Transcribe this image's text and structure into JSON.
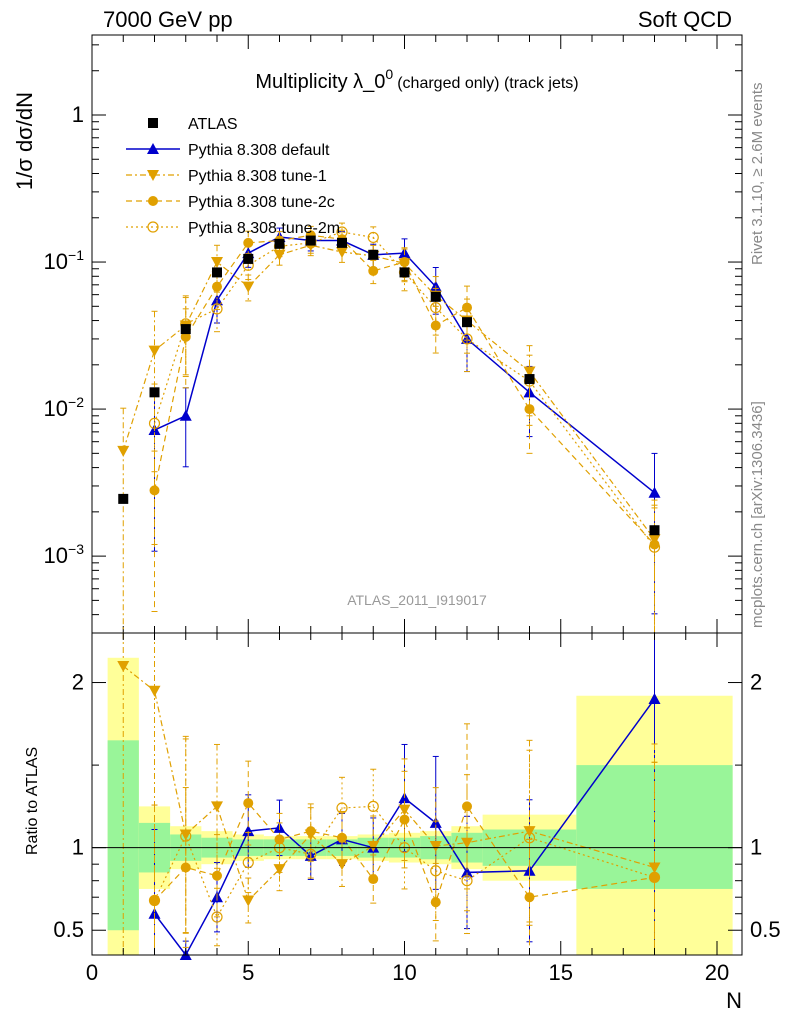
{
  "header": {
    "left": "7000 GeV pp",
    "right": "Soft QCD"
  },
  "side_labels": {
    "rivet": "Rivet 3.1.10, ≥ 2.6M events",
    "mcplots": "mcplots.cern.ch [arXiv:1306.3436]"
  },
  "analysis_id": "ATLAS_2011_I919017",
  "colors": {
    "atlas": "#000000",
    "default": "#0000cc",
    "tune": "#e0a000",
    "band_inner": "#99f599",
    "band_outer": "#ffff99"
  },
  "chart_data": [
    {
      "type": "line",
      "title_main": "Multiplicity λ_0",
      "title_sup": "0",
      "title_suffix": "(charged only) (track jets)",
      "ylabel": "1/σ dσ/dN",
      "yscale": "log",
      "ylim": [
        0.0003,
        3.5
      ],
      "xlim": [
        0,
        20.8
      ],
      "ytick_labels": [
        "1",
        "10",
        "10",
        "10"
      ],
      "ytick_exps": [
        "",
        "−1",
        "−2",
        "−3"
      ],
      "legend_placement": "top-left",
      "legend": [
        "ATLAS",
        "Pythia 8.308 default",
        "Pythia 8.308 tune-1",
        "Pythia 8.308 tune-2c",
        "Pythia 8.308 tune-2m"
      ],
      "x": [
        1,
        2,
        3,
        4,
        5,
        6,
        7,
        8,
        9,
        10,
        11,
        12,
        14,
        18
      ],
      "series": [
        {
          "name": "ATLAS",
          "values": [
            0.00245,
            0.013,
            0.035,
            0.085,
            0.105,
            0.133,
            0.14,
            0.135,
            0.112,
            0.085,
            0.058,
            0.039,
            0.016,
            0.0015
          ]
        },
        {
          "name": "Pythia 8.308 default",
          "values": [
            null,
            0.0072,
            0.009,
            0.055,
            0.115,
            0.148,
            0.14,
            0.14,
            0.112,
            0.115,
            0.068,
            0.03,
            0.013,
            0.0027
          ]
        },
        {
          "name": "Pythia 8.308 tune-1",
          "values": [
            0.0052,
            0.025,
            0.037,
            0.1,
            0.068,
            0.112,
            0.13,
            0.117,
            0.11,
            0.098,
            0.059,
            0.04,
            0.018,
            0.0013
          ]
        },
        {
          "name": "Pythia 8.308 tune-2c",
          "values": [
            null,
            0.0028,
            0.031,
            0.068,
            0.135,
            0.14,
            0.152,
            0.143,
            0.087,
            0.1,
            0.037,
            0.049,
            0.01,
            0.0012
          ]
        },
        {
          "name": "Pythia 8.308 tune-2m",
          "values": [
            null,
            0.008,
            0.038,
            0.048,
            0.095,
            0.128,
            0.135,
            0.16,
            0.147,
            0.085,
            0.049,
            0.03,
            0.0155,
            0.00115
          ]
        }
      ]
    },
    {
      "type": "line",
      "ylabel": "Ratio to ATLAS",
      "xlabel": "N",
      "ylim": [
        0.35,
        2.3
      ],
      "xlim": [
        0,
        20.8
      ],
      "reference": 1,
      "xtick_labels": [
        "0",
        "5",
        "10",
        "15",
        "20"
      ],
      "ytick_labels": [
        "0.5",
        "1",
        "2"
      ],
      "ytick_values": [
        0.5,
        1,
        2
      ],
      "bands": [
        {
          "xlo": 0.5,
          "xhi": 1.5,
          "inner": [
            0.5,
            1.65
          ],
          "outer": [
            0.35,
            2.15
          ]
        },
        {
          "xlo": 1.5,
          "xhi": 2.5,
          "inner": [
            0.85,
            1.15
          ],
          "outer": [
            0.75,
            1.25
          ]
        },
        {
          "xlo": 2.5,
          "xhi": 3.5,
          "inner": [
            0.92,
            1.08
          ],
          "outer": [
            0.87,
            1.13
          ]
        },
        {
          "xlo": 3.5,
          "xhi": 4.5,
          "inner": [
            0.94,
            1.06
          ],
          "outer": [
            0.9,
            1.1
          ]
        },
        {
          "xlo": 4.5,
          "xhi": 5.5,
          "inner": [
            0.95,
            1.05
          ],
          "outer": [
            0.92,
            1.08
          ]
        },
        {
          "xlo": 5.5,
          "xhi": 6.5,
          "inner": [
            0.95,
            1.05
          ],
          "outer": [
            0.93,
            1.07
          ]
        },
        {
          "xlo": 6.5,
          "xhi": 7.5,
          "inner": [
            0.95,
            1.05
          ],
          "outer": [
            0.93,
            1.07
          ]
        },
        {
          "xlo": 7.5,
          "xhi": 8.5,
          "inner": [
            0.95,
            1.05
          ],
          "outer": [
            0.93,
            1.07
          ]
        },
        {
          "xlo": 8.5,
          "xhi": 9.5,
          "inner": [
            0.94,
            1.06
          ],
          "outer": [
            0.92,
            1.08
          ]
        },
        {
          "xlo": 9.5,
          "xhi": 10.5,
          "inner": [
            0.94,
            1.06
          ],
          "outer": [
            0.91,
            1.09
          ]
        },
        {
          "xlo": 10.5,
          "xhi": 11.5,
          "inner": [
            0.93,
            1.07
          ],
          "outer": [
            0.9,
            1.1
          ]
        },
        {
          "xlo": 11.5,
          "xhi": 12.5,
          "inner": [
            0.91,
            1.09
          ],
          "outer": [
            0.87,
            1.13
          ]
        },
        {
          "xlo": 12.5,
          "xhi": 15.5,
          "inner": [
            0.89,
            1.11
          ],
          "outer": [
            0.8,
            1.2
          ]
        },
        {
          "xlo": 15.5,
          "xhi": 20.5,
          "inner": [
            0.75,
            1.5
          ],
          "outer": [
            0.35,
            1.92
          ]
        }
      ],
      "series": [
        {
          "name": "Pythia 8.308 default",
          "values": [
            null,
            0.6,
            0.28,
            0.7,
            1.1,
            1.12,
            0.95,
            1.05,
            1.0,
            1.3,
            1.15,
            0.85,
            0.86,
            1.9
          ]
        },
        {
          "name": "Pythia 8.308 tune-1",
          "values": [
            2.1,
            1.95,
            1.08,
            1.25,
            0.68,
            0.87,
            1.08,
            0.9,
            1.01,
            1.23,
            1.01,
            1.03,
            1.1,
            0.88
          ]
        },
        {
          "name": "Pythia 8.308 tune-2c",
          "values": [
            null,
            0.68,
            0.88,
            0.83,
            1.27,
            1.05,
            1.1,
            1.06,
            0.81,
            1.17,
            0.67,
            1.25,
            0.7,
            0.82
          ]
        },
        {
          "name": "Pythia 8.308 tune-2m",
          "values": [
            null,
            0.68,
            1.07,
            0.58,
            0.91,
            1.0,
            0.96,
            1.24,
            1.25,
            1.0,
            0.86,
            0.8,
            1.06,
            0.82
          ]
        }
      ]
    }
  ]
}
